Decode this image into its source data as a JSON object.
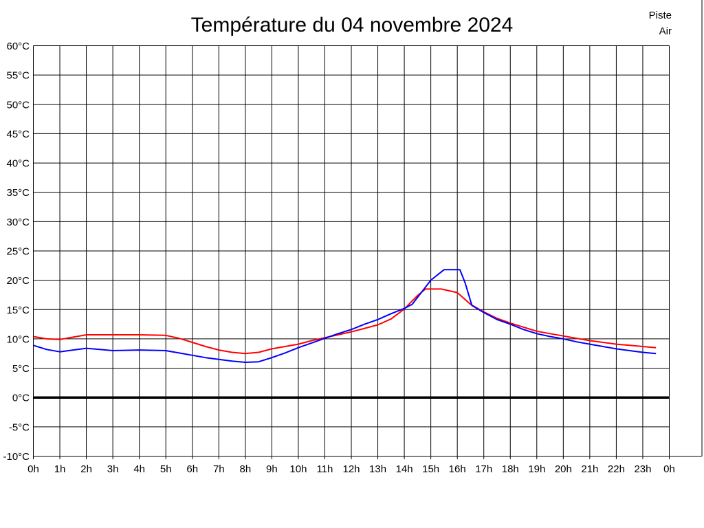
{
  "chart_data": {
    "type": "line",
    "title": "Température du 04 novembre 2024",
    "x_tick_labels": [
      "0h",
      "1h",
      "2h",
      "3h",
      "4h",
      "5h",
      "6h",
      "7h",
      "8h",
      "9h",
      "10h",
      "11h",
      "12h",
      "13h",
      "14h",
      "15h",
      "16h",
      "17h",
      "18h",
      "19h",
      "20h",
      "21h",
      "22h",
      "23h",
      "0h"
    ],
    "x_range_hours": [
      0,
      24
    ],
    "y_ticks": [
      60,
      55,
      50,
      45,
      40,
      35,
      30,
      25,
      20,
      15,
      10,
      5,
      0,
      -5,
      -10
    ],
    "y_tick_suffix": "°C",
    "ylim": [
      -10,
      60
    ],
    "grid": true,
    "grid_color": "#000000",
    "zero_line": {
      "value": 0,
      "color": "#000000",
      "width": 3.5
    },
    "legend_position": "top-right",
    "series": [
      {
        "name": "Piste",
        "color": "#ff0000",
        "points": [
          [
            0,
            10.4
          ],
          [
            0.5,
            10.0
          ],
          [
            1,
            9.9
          ],
          [
            1.5,
            10.3
          ],
          [
            2,
            10.7
          ],
          [
            3,
            10.7
          ],
          [
            4,
            10.7
          ],
          [
            5,
            10.6
          ],
          [
            5.5,
            10.1
          ],
          [
            6,
            9.4
          ],
          [
            6.5,
            8.7
          ],
          [
            7,
            8.1
          ],
          [
            7.5,
            7.7
          ],
          [
            8,
            7.5
          ],
          [
            8.5,
            7.7
          ],
          [
            9,
            8.3
          ],
          [
            9.5,
            8.7
          ],
          [
            10,
            9.1
          ],
          [
            10.5,
            9.7
          ],
          [
            11,
            10.2
          ],
          [
            11.5,
            10.7
          ],
          [
            12,
            11.2
          ],
          [
            12.5,
            11.8
          ],
          [
            13,
            12.4
          ],
          [
            13.5,
            13.4
          ],
          [
            14,
            15.1
          ],
          [
            14.5,
            17.4
          ],
          [
            14.8,
            18.5
          ],
          [
            15.4,
            18.5
          ],
          [
            16,
            17.9
          ],
          [
            16.5,
            15.9
          ],
          [
            17,
            14.6
          ],
          [
            17.5,
            13.5
          ],
          [
            18,
            12.7
          ],
          [
            18.5,
            12.0
          ],
          [
            19,
            11.3
          ],
          [
            19.5,
            10.9
          ],
          [
            20,
            10.5
          ],
          [
            20.5,
            10.1
          ],
          [
            21,
            9.7
          ],
          [
            21.5,
            9.4
          ],
          [
            22,
            9.1
          ],
          [
            22.5,
            8.9
          ],
          [
            23,
            8.7
          ],
          [
            23.5,
            8.5
          ]
        ]
      },
      {
        "name": "Air",
        "color": "#0000ff",
        "points": [
          [
            0,
            8.9
          ],
          [
            0.5,
            8.2
          ],
          [
            1,
            7.8
          ],
          [
            1.5,
            8.1
          ],
          [
            2,
            8.4
          ],
          [
            2.5,
            8.2
          ],
          [
            3,
            8.0
          ],
          [
            4,
            8.1
          ],
          [
            5,
            8.0
          ],
          [
            5.5,
            7.6
          ],
          [
            6,
            7.2
          ],
          [
            6.5,
            6.8
          ],
          [
            7,
            6.5
          ],
          [
            7.5,
            6.2
          ],
          [
            8,
            6.0
          ],
          [
            8.5,
            6.1
          ],
          [
            9,
            6.8
          ],
          [
            9.5,
            7.6
          ],
          [
            10,
            8.5
          ],
          [
            10.5,
            9.3
          ],
          [
            11,
            10.1
          ],
          [
            11.5,
            10.9
          ],
          [
            12,
            11.6
          ],
          [
            12.5,
            12.5
          ],
          [
            13,
            13.3
          ],
          [
            13.5,
            14.3
          ],
          [
            14,
            15.2
          ],
          [
            14.3,
            15.9
          ],
          [
            15,
            20.0
          ],
          [
            15.5,
            21.8
          ],
          [
            16.1,
            21.8
          ],
          [
            16.3,
            19.5
          ],
          [
            16.55,
            15.7
          ],
          [
            17,
            14.5
          ],
          [
            17.5,
            13.3
          ],
          [
            18,
            12.5
          ],
          [
            18.5,
            11.6
          ],
          [
            19,
            10.9
          ],
          [
            19.5,
            10.4
          ],
          [
            20,
            10.0
          ],
          [
            20.5,
            9.5
          ],
          [
            21,
            9.1
          ],
          [
            21.5,
            8.7
          ],
          [
            22,
            8.3
          ],
          [
            22.5,
            8.0
          ],
          [
            23,
            7.7
          ],
          [
            23.5,
            7.5
          ]
        ]
      }
    ]
  }
}
